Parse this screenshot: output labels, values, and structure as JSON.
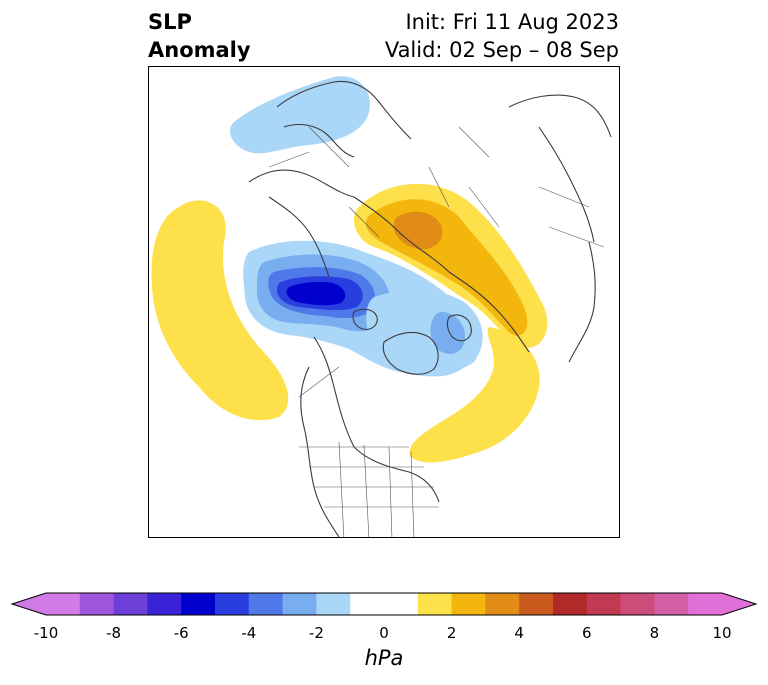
{
  "header": {
    "variable_line1": "SLP",
    "variable_line2": "Anomaly",
    "init_text": "Init: Fri 11 Aug 2023",
    "valid_text": "Valid: 02 Sep – 08 Sep"
  },
  "map": {
    "projection": "north-polar-stereographic",
    "field": "sea level pressure anomaly",
    "features": [
      {
        "label": "negative anomaly over northern Europe / Scandinavia",
        "level": "-2"
      },
      {
        "label": "deep negative anomaly over Alaska / Beaufort Sea",
        "level": "-7"
      },
      {
        "label": "negative anomaly over Greenland / Baffin",
        "level": "-4"
      },
      {
        "label": "positive anomaly over North Pacific",
        "level": "2"
      },
      {
        "label": "positive anomaly over central Siberia",
        "level": "4"
      },
      {
        "label": "positive anomaly over western Atlantic / Labrador",
        "level": "2"
      }
    ]
  },
  "colorbar": {
    "unit": "hPa",
    "ticks": [
      "-10",
      "-8",
      "-6",
      "-4",
      "-2",
      "0",
      "2",
      "4",
      "6",
      "8",
      "10"
    ],
    "extend": "both",
    "colors": [
      "#d07be8",
      "#a156e0",
      "#6e3ed8",
      "#3b22d6",
      "#0000cd",
      "#2a3ee0",
      "#4f78e8",
      "#78aef0",
      "#aad6f8",
      "#ffffff",
      "#ffffff",
      "#fde04a",
      "#f3b60c",
      "#e08c16",
      "#c95a1c",
      "#b02a2a",
      "#c23a52",
      "#cc4c7a",
      "#d35ea6",
      "#e070d8"
    ]
  }
}
